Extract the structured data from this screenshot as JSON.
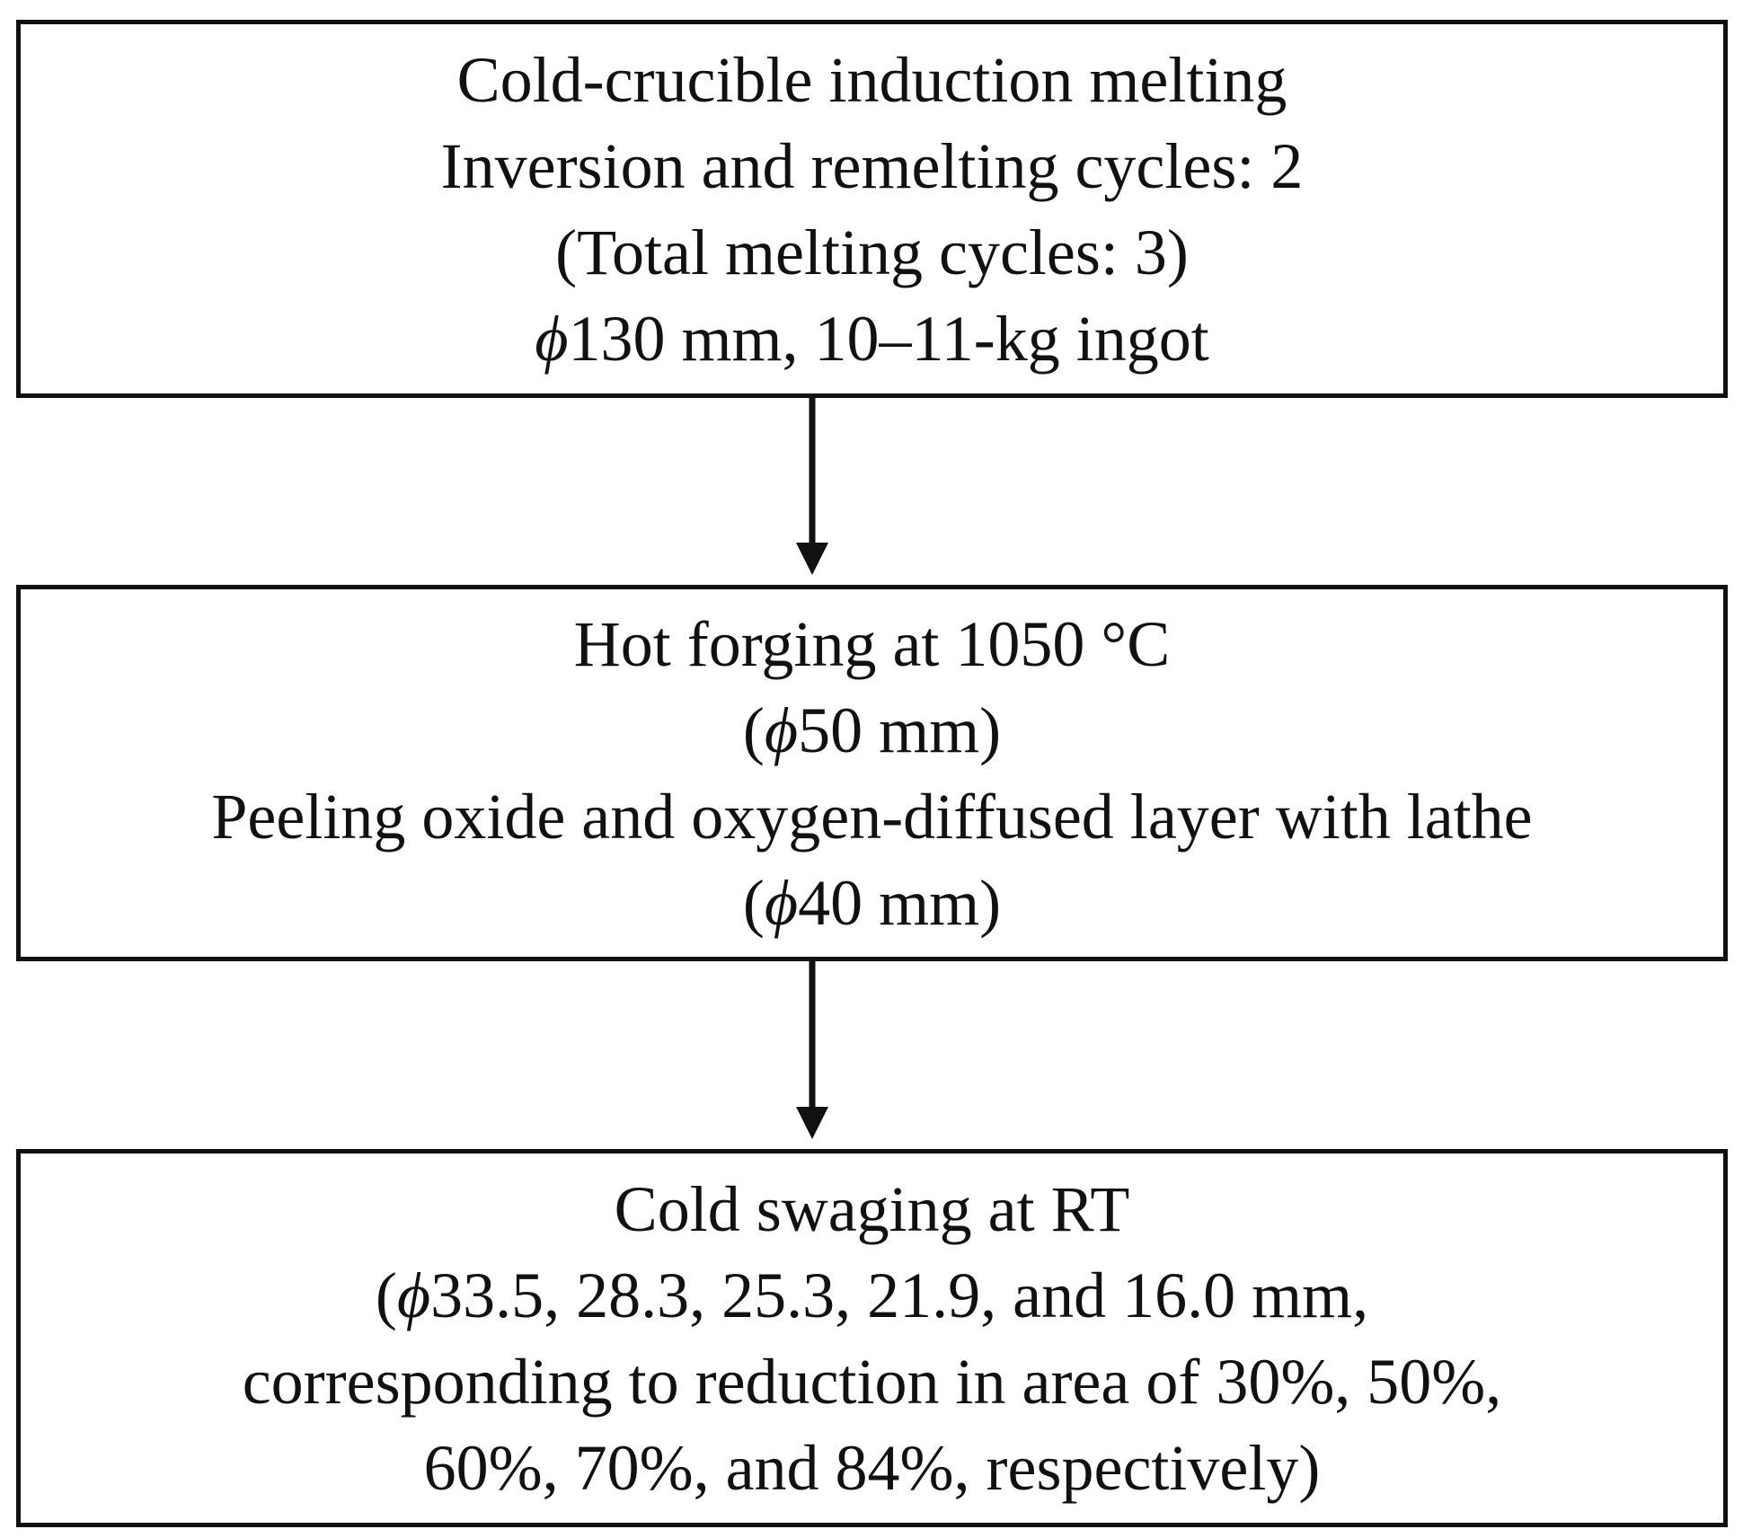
{
  "steps": [
    {
      "lines": [
        {
          "pre": "",
          "sym": "",
          "text": "Cold-crucible induction melting"
        },
        {
          "pre": "",
          "sym": "",
          "text": "Inversion and remelting cycles: 2"
        },
        {
          "pre": "",
          "sym": "",
          "text": "(Total melting cycles: 3)"
        },
        {
          "pre": "",
          "sym": "ϕ",
          "text": "130 mm, 10–11-kg ingot"
        }
      ]
    },
    {
      "lines": [
        {
          "pre": "",
          "sym": "",
          "text": "Hot forging at 1050 °C"
        },
        {
          "pre": "(",
          "sym": "ϕ",
          "text": "50 mm)"
        },
        {
          "pre": "",
          "sym": "",
          "text": "Peeling oxide and oxygen-diffused layer with lathe"
        },
        {
          "pre": "(",
          "sym": "ϕ",
          "text": "40 mm)"
        }
      ]
    },
    {
      "lines": [
        {
          "pre": "",
          "sym": "",
          "text": "Cold swaging at RT"
        },
        {
          "pre": "(",
          "sym": "ϕ",
          "text": "33.5, 28.3, 25.3, 21.9, and 16.0 mm,"
        },
        {
          "pre": "",
          "sym": "",
          "text": "corresponding to reduction in area of 30%, 50%,"
        },
        {
          "pre": "",
          "sym": "",
          "text": "60%, 70%, and 84%, respectively)"
        }
      ]
    }
  ],
  "colors": {
    "stroke": "#111111",
    "background": "#ffffff"
  }
}
